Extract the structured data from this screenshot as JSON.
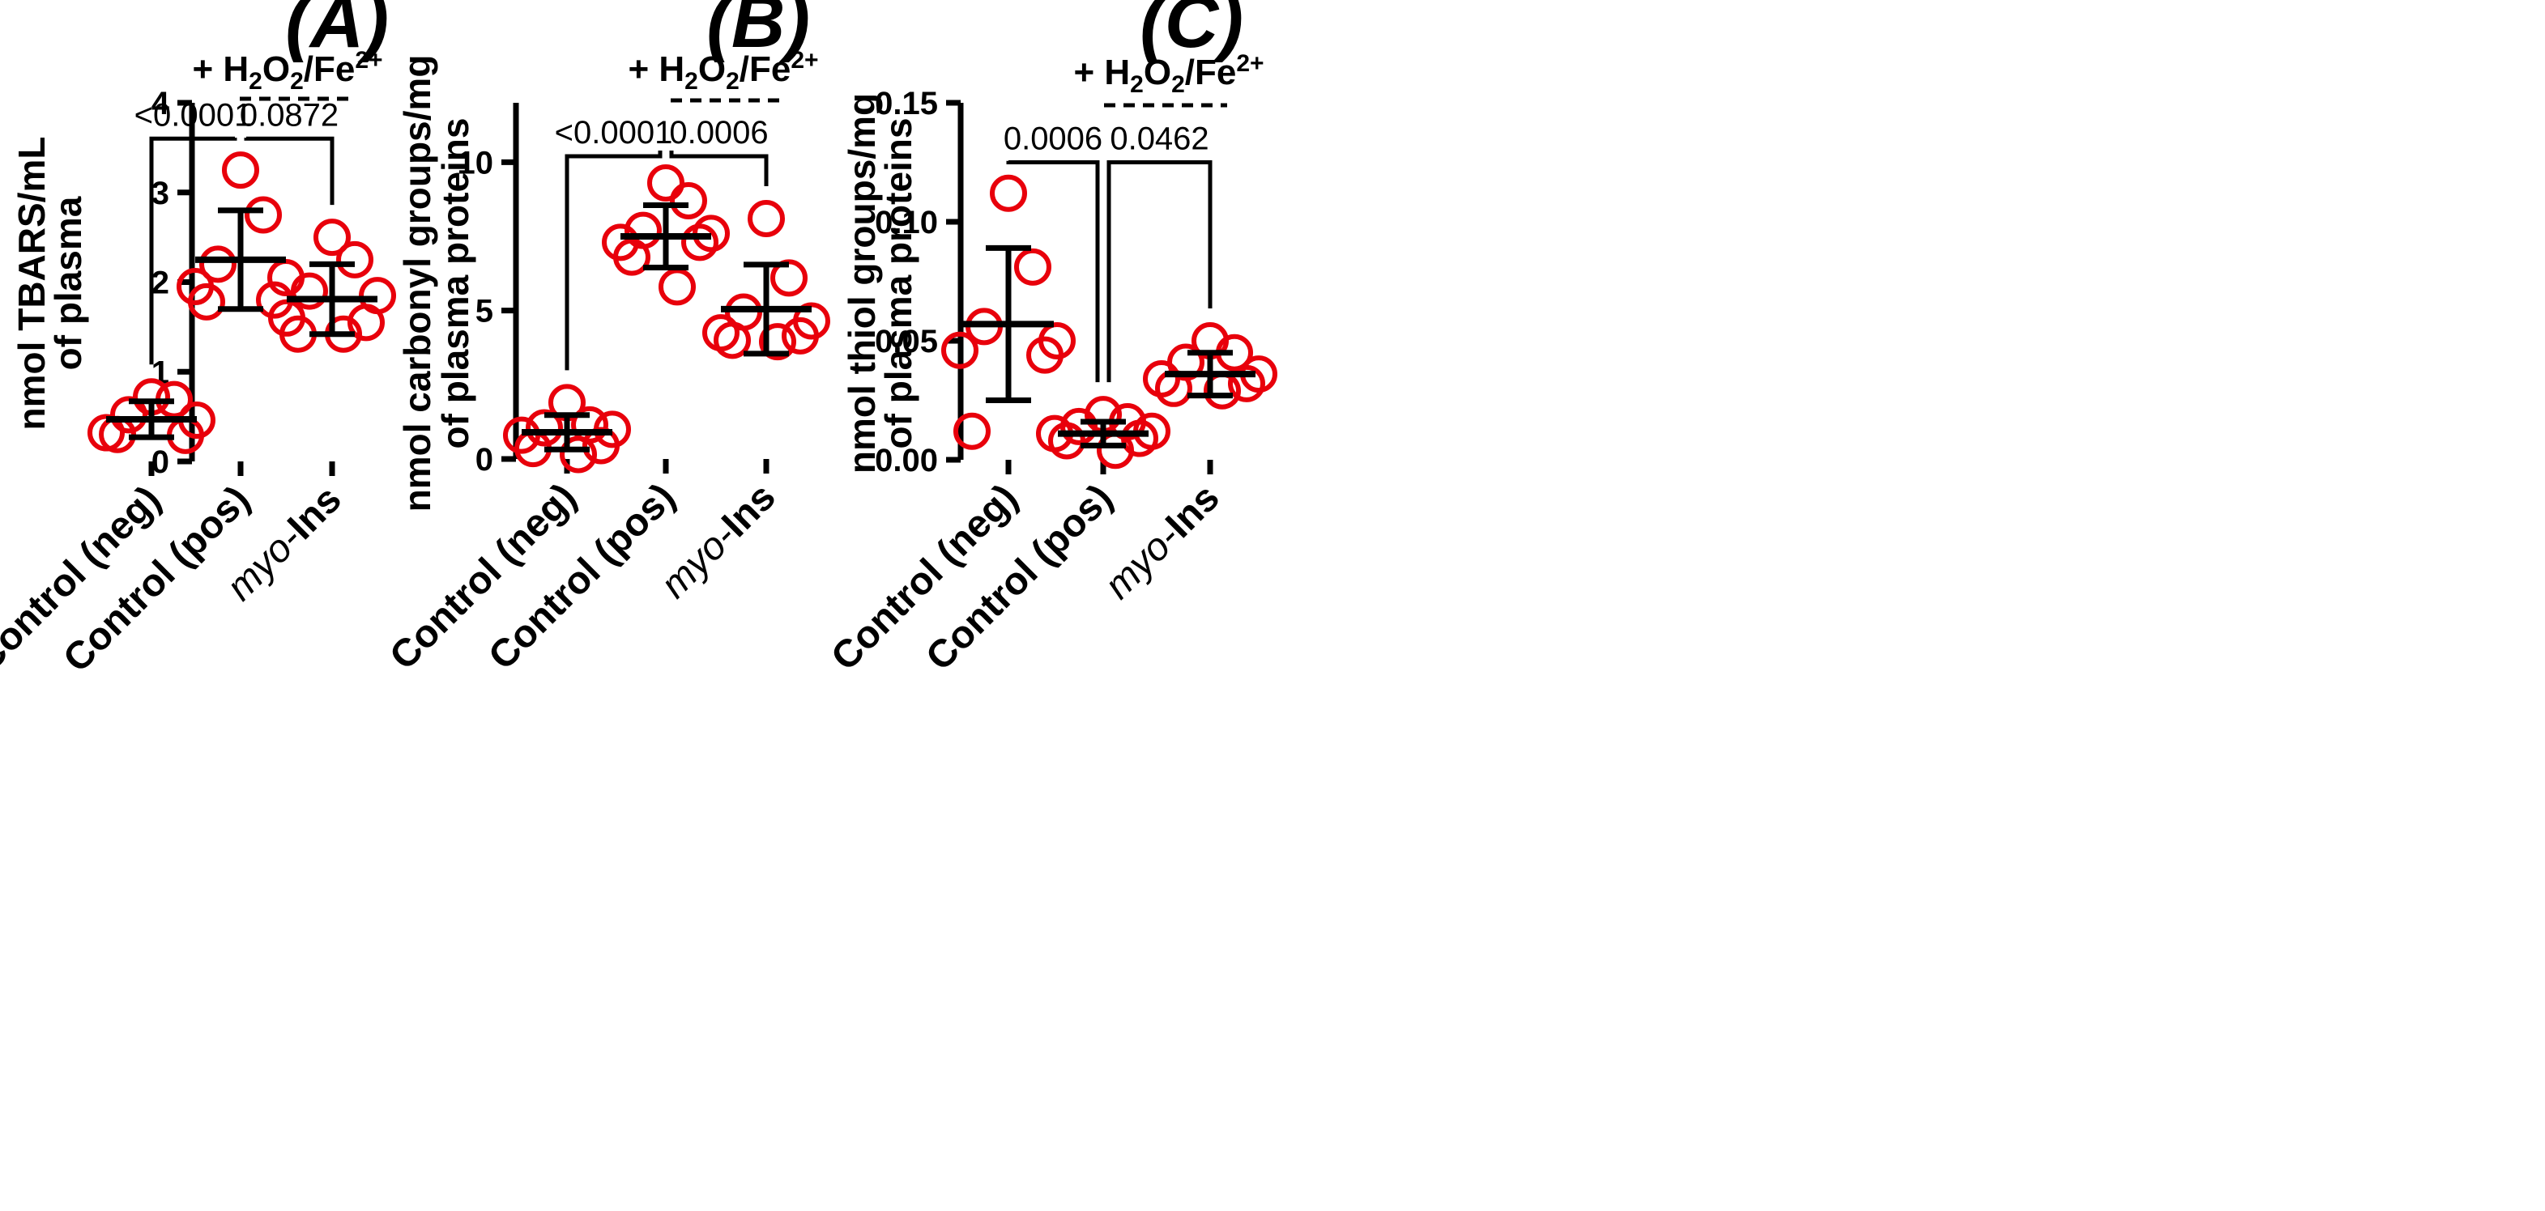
{
  "chart_data": [
    {
      "type": "scatter",
      "panel_label": "(A)",
      "treatment_label": "+ H2O2/Fe2+",
      "ylabel_lines": [
        "nmol TBARS/mL",
        "of plasma"
      ],
      "ylim": [
        0,
        4
      ],
      "yticks": [
        "0",
        "1",
        "2",
        "3",
        "4"
      ],
      "categories": [
        "Control (neg)",
        "Control (pos)",
        "myo-Ins"
      ],
      "groups": [
        {
          "name": "Control (neg)",
          "points": [
            0.72,
            0.69,
            0.52,
            0.46,
            0.32,
            0.29,
            0.3
          ],
          "mean": 0.47,
          "sd": 0.2
        },
        {
          "name": "Control (pos)",
          "points": [
            3.25,
            2.75,
            2.2,
            2.05,
            1.95,
            1.8,
            1.78
          ],
          "mean": 2.25,
          "sd": 0.55
        },
        {
          "name": "myo-Ins",
          "points": [
            2.5,
            2.25,
            1.9,
            1.85,
            1.6,
            1.55,
            1.42,
            1.42
          ],
          "mean": 1.81,
          "sd": 0.39
        }
      ],
      "comparisons": [
        {
          "from": 0,
          "to": 1,
          "label": "<0.0001",
          "level": 3.6
        },
        {
          "from": 1,
          "to": 2,
          "label": "0.0872",
          "level": 3.6
        }
      ]
    },
    {
      "type": "scatter",
      "panel_label": "(B)",
      "treatment_label": "+ H2O2/Fe2+",
      "ylabel_lines": [
        "nmol carbonyl groups/mg",
        "of plasma proteins"
      ],
      "ylim": [
        0,
        12
      ],
      "yticks": [
        "0",
        "5",
        "10"
      ],
      "ytick_values": [
        0,
        5,
        10
      ],
      "categories": [
        "Control (neg)",
        "Control (pos)",
        "myo-Ins"
      ],
      "groups": [
        {
          "name": "Control (neg)",
          "points": [
            1.9,
            1.15,
            1.05,
            1.0,
            0.8,
            0.45,
            0.35,
            0.15
          ],
          "mean": 0.9,
          "sd": 0.58
        },
        {
          "name": "Control (pos)",
          "points": [
            9.3,
            8.7,
            7.7,
            7.6,
            7.3,
            7.3,
            6.8,
            5.8
          ],
          "mean": 7.5,
          "sd": 1.05
        },
        {
          "name": "myo-Ins",
          "points": [
            8.1,
            6.1,
            4.95,
            4.65,
            4.25,
            4.15,
            4.0,
            3.95
          ],
          "mean": 5.05,
          "sd": 1.5
        }
      ],
      "comparisons": [
        {
          "from": 0,
          "to": 1,
          "label": "<0.0001",
          "level": 10.2
        },
        {
          "from": 1,
          "to": 2,
          "label": "0.0006",
          "level": 10.2
        }
      ]
    },
    {
      "type": "scatter",
      "panel_label": "(C)",
      "treatment_label": "+ H2O2/Fe2+",
      "ylabel_lines": [
        "nmol thiol groups/mg",
        "of plasma proteins"
      ],
      "ylim": [
        0,
        0.15
      ],
      "yticks": [
        "0.00",
        "0.05",
        "0.10",
        "0.15"
      ],
      "ytick_values": [
        0,
        0.05,
        0.1,
        0.15
      ],
      "categories": [
        "Control (neg)",
        "Control (pos)",
        "myo-Ins"
      ],
      "groups": [
        {
          "name": "Control (neg)",
          "points": [
            0.112,
            0.081,
            0.056,
            0.05,
            0.046,
            0.044,
            0.012
          ],
          "mean": 0.057,
          "sd": 0.032
        },
        {
          "name": "Control (pos)",
          "points": [
            0.019,
            0.016,
            0.014,
            0.012,
            0.011,
            0.009,
            0.008,
            0.004
          ],
          "mean": 0.011,
          "sd": 0.005
        },
        {
          "name": "myo-Ins",
          "points": [
            0.05,
            0.045,
            0.041,
            0.036,
            0.034,
            0.032,
            0.03,
            0.029
          ],
          "mean": 0.036,
          "sd": 0.009
        }
      ],
      "comparisons": [
        {
          "from": 0,
          "to": 1,
          "label": "0.0006",
          "level": 0.125
        },
        {
          "from": 1,
          "to": 2,
          "label": "0.0462",
          "level": 0.125
        }
      ]
    }
  ],
  "colors": {
    "points": "#e8000b",
    "lines": "#000000"
  }
}
